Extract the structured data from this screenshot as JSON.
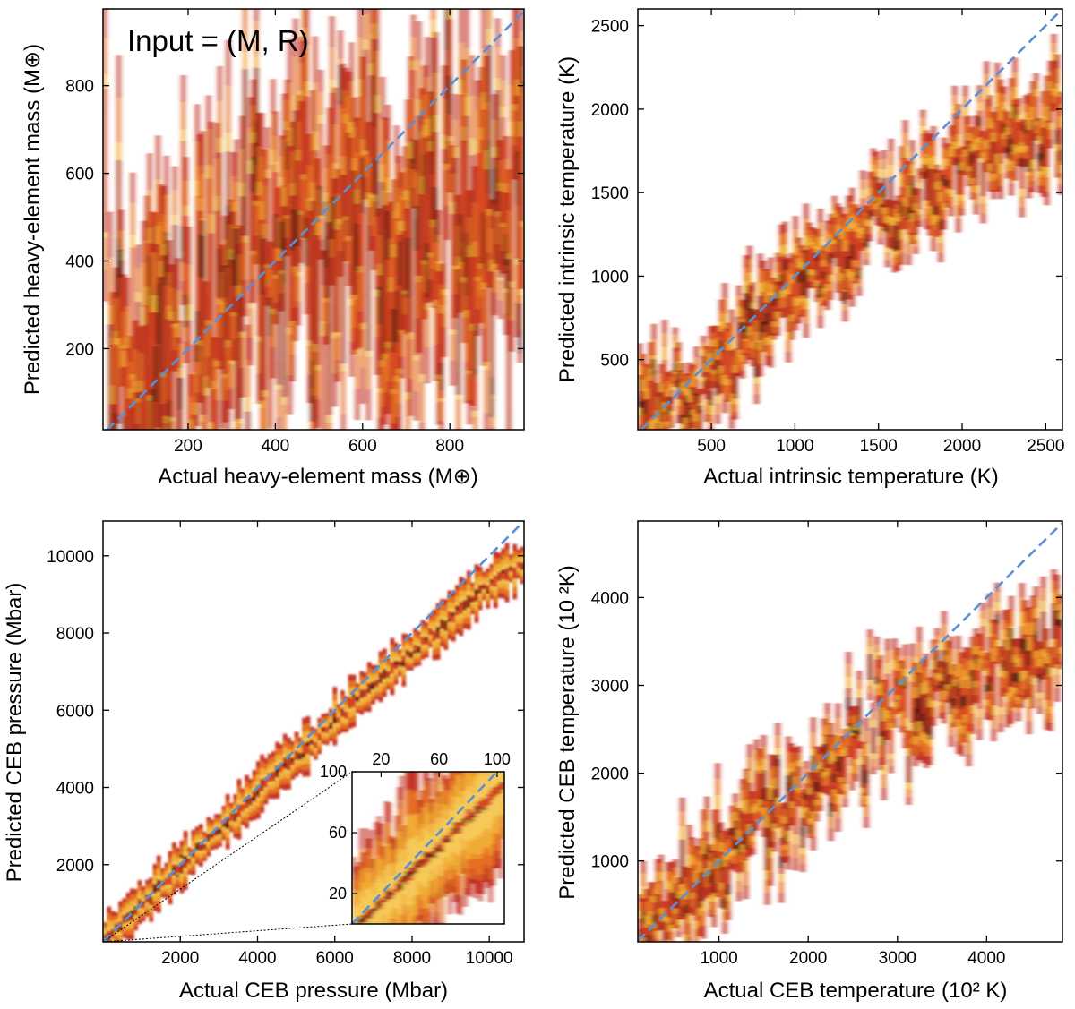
{
  "chart_data": [
    {
      "id": "mass",
      "type": "heatmap",
      "annotation": "Input = (M, R)",
      "xlabel": "Actual heavy-element mass (M⊕)",
      "ylabel": "Predicted heavy-element mass (M⊕)",
      "xlim": [
        5,
        970
      ],
      "ylim": [
        15,
        975
      ],
      "xticks": [
        200,
        400,
        600,
        800
      ],
      "yticks": [
        200,
        400,
        600,
        800
      ],
      "diagonal": "y = x",
      "prediction_curve": {
        "x": [
          5,
          100,
          300,
          500,
          700,
          900,
          970
        ],
        "y": [
          40,
          150,
          330,
          430,
          500,
          560,
          580
        ]
      },
      "spread": "very-wide"
    },
    {
      "id": "tint",
      "type": "heatmap",
      "xlabel": "Actual intrinsic temperature (K)",
      "ylabel": "Predicted intrinsic temperature (K)",
      "xlim": [
        60,
        2600
      ],
      "ylim": [
        80,
        2600
      ],
      "xticks": [
        500,
        1000,
        1500,
        2000,
        2500
      ],
      "yticks": [
        500,
        1000,
        1500,
        2000,
        2500
      ],
      "diagonal": "y = x",
      "prediction_curve": {
        "x": [
          60,
          300,
          700,
          1000,
          1500,
          2000,
          2600
        ],
        "y": [
          250,
          300,
          650,
          950,
          1350,
          1700,
          1950
        ]
      },
      "spread": "medium"
    },
    {
      "id": "pressure",
      "type": "heatmap",
      "xlabel": "Actual CEB pressure (Mbar)",
      "ylabel": "Predicted CEB pressure (Mbar)",
      "xlim": [
        0,
        10900
      ],
      "ylim": [
        0,
        10900
      ],
      "xticks": [
        2000,
        4000,
        6000,
        8000,
        10000
      ],
      "yticks": [
        2000,
        4000,
        6000,
        8000,
        10000
      ],
      "diagonal": "y = x",
      "prediction_curve": {
        "x": [
          0,
          2000,
          4000,
          6000,
          8000,
          10000,
          10900
        ],
        "y": [
          0,
          1950,
          3900,
          5750,
          7550,
          9200,
          9800
        ]
      },
      "spread": "narrow",
      "inset": {
        "xlim": [
          0,
          105
        ],
        "ylim": [
          0,
          100
        ],
        "xticks": [
          20,
          60,
          100
        ],
        "yticks": [
          20,
          60,
          100
        ]
      }
    },
    {
      "id": "tceb",
      "type": "heatmap",
      "xlabel": "Actual CEB temperature (10² K)",
      "ylabel": "Predicted CEB temperature (10 ²K)",
      "xlim": [
        90,
        4850
      ],
      "ylim": [
        80,
        4870
      ],
      "xticks": [
        1000,
        2000,
        3000,
        4000
      ],
      "yticks": [
        1000,
        2000,
        3000,
        4000
      ],
      "diagonal": "y = x",
      "prediction_curve": {
        "x": [
          90,
          1000,
          2000,
          3000,
          4000,
          4850
        ],
        "y": [
          200,
          1000,
          1950,
          2700,
          3200,
          3400
        ]
      },
      "spread": "medium"
    }
  ]
}
